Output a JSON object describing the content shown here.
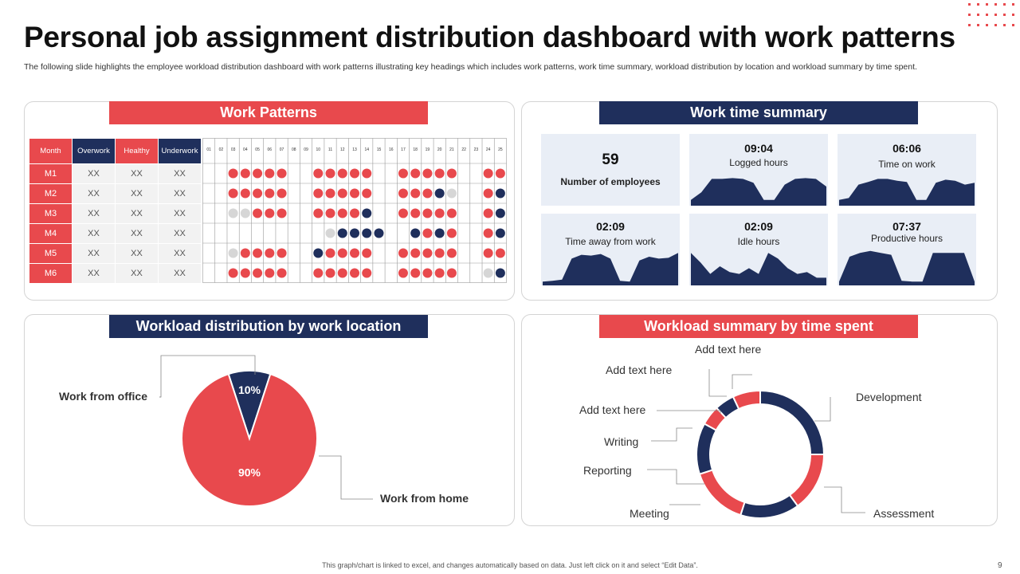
{
  "title": "Personal job assignment distribution dashboard with work patterns",
  "subtitle": "The following slide highlights the employee workload distribution dashboard with work patterns illustrating key headings which includes work patterns, work time summary, workload distribution by location and workload summary by time spent.",
  "footer": "This graph/chart is linked to excel, and changes automatically based on data. Just left click on it and select “Edit Data”.",
  "page_number": "9",
  "colors": {
    "red": "#e8494d",
    "navy": "#1f2f5c",
    "grey": "#d6d6d6",
    "card_bg": "#e9eef6"
  },
  "work_patterns": {
    "header": "Work Patterns",
    "columns": [
      "Month",
      "Overwork",
      "Healthy",
      "Underwork"
    ],
    "days": [
      "01",
      "02",
      "03",
      "04",
      "05",
      "06",
      "07",
      "08",
      "09",
      "10",
      "11",
      "12",
      "13",
      "14",
      "15",
      "16",
      "17",
      "18",
      "19",
      "20",
      "21",
      "22",
      "23",
      "24",
      "25"
    ],
    "rows": [
      {
        "month": "M1",
        "overwork": "XX",
        "healthy": "XX",
        "underwork": "XX",
        "pattern": "00RRRRR00RRRRR00RRRRR00RR"
      },
      {
        "month": "M2",
        "overwork": "XX",
        "healthy": "XX",
        "underwork": "XX",
        "pattern": "00RRRRR00RRRRR00RRRNG00RN"
      },
      {
        "month": "M3",
        "overwork": "XX",
        "healthy": "XX",
        "underwork": "XX",
        "pattern": "00GGRRR00RRRRN00RRRRR00RN"
      },
      {
        "month": "M4",
        "overwork": "XX",
        "healthy": "XX",
        "underwork": "XX",
        "pattern": "0000000000GNNNN00NRNR00RN"
      },
      {
        "month": "M5",
        "overwork": "XX",
        "healthy": "XX",
        "underwork": "XX",
        "pattern": "00GRRRR00NRRRR00RRRRR00RR"
      },
      {
        "month": "M6",
        "overwork": "XX",
        "healthy": "XX",
        "underwork": "XX",
        "pattern": "00RRRRR00RRRRR00RRRRR00GN"
      }
    ]
  },
  "work_time_summary": {
    "header": "Work time summary",
    "employees": {
      "value": "59",
      "label": "Number of employees"
    },
    "cards": [
      {
        "value": "09:04",
        "label": "Logged hours",
        "trend": [
          0.15,
          0.35,
          0.7,
          0.7,
          0.72,
          0.7,
          0.6,
          0.15,
          0.15,
          0.55,
          0.7,
          0.72,
          0.7,
          0.5
        ]
      },
      {
        "value": "06:06",
        "label": "Time on work",
        "trend": [
          0.15,
          0.2,
          0.55,
          0.62,
          0.7,
          0.7,
          0.65,
          0.62,
          0.15,
          0.15,
          0.6,
          0.68,
          0.65,
          0.55,
          0.6
        ]
      },
      {
        "value": "02:09",
        "label": "Time away from work",
        "trend": [
          0.1,
          0.12,
          0.15,
          0.7,
          0.8,
          0.78,
          0.82,
          0.7,
          0.12,
          0.1,
          0.65,
          0.75,
          0.7,
          0.72,
          0.85
        ]
      },
      {
        "value": "02:09",
        "label": "Idle hours",
        "trend": [
          0.85,
          0.6,
          0.3,
          0.5,
          0.35,
          0.3,
          0.45,
          0.3,
          0.85,
          0.7,
          0.45,
          0.3,
          0.35,
          0.2,
          0.2
        ]
      },
      {
        "value": "07:37",
        "label": "Productive hours",
        "trend": [
          0.1,
          0.75,
          0.85,
          0.9,
          0.85,
          0.8,
          0.12,
          0.1,
          0.1,
          0.85,
          0.85,
          0.85,
          0.85,
          0.1
        ]
      }
    ]
  },
  "workload_location": {
    "header": "Workload distribution by work location",
    "labels": [
      "Work from office",
      "Work from home"
    ]
  },
  "workload_time": {
    "header": "Workload summary by time spent",
    "labels": [
      "Add text here",
      "Add text here",
      "Add text here",
      "Writing",
      "Reporting",
      "Meeting",
      "Assessment",
      "Development"
    ]
  },
  "chart_data": [
    {
      "type": "pie",
      "title": "Workload distribution by work location",
      "categories": [
        "Work from office",
        "Work from home"
      ],
      "values": [
        10,
        90
      ],
      "data_labels": [
        "10%",
        "90%"
      ]
    },
    {
      "type": "pie",
      "title": "Workload summary by time spent",
      "categories": [
        "Development",
        "Assessment",
        "Meeting",
        "Reporting",
        "Writing",
        "Add text here",
        "Add text here",
        "Add text here"
      ],
      "values": [
        25,
        15,
        15,
        15,
        13,
        5,
        5,
        7
      ],
      "donut": true
    }
  ]
}
